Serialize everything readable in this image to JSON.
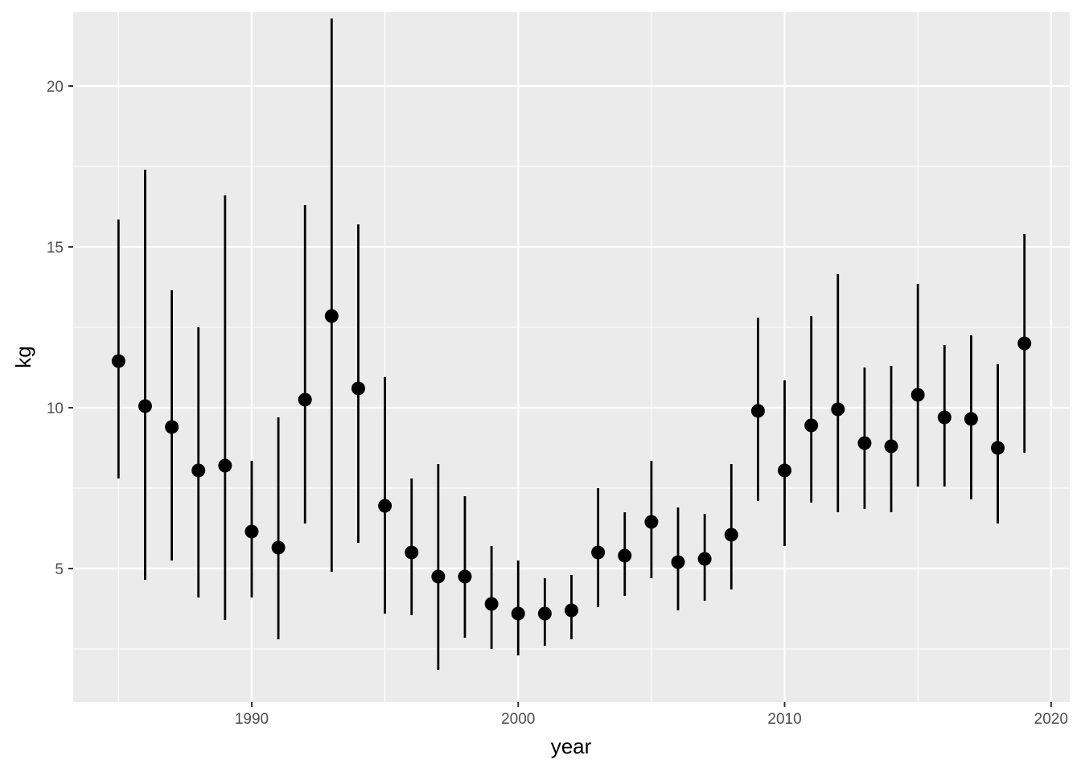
{
  "chart_data": {
    "type": "scatter",
    "title": "",
    "xlabel": "year",
    "ylabel": "kg",
    "xlim": [
      1983.3,
      2020.7
    ],
    "ylim": [
      0.85,
      22.3
    ],
    "x_ticks": [
      1990,
      2000,
      2010,
      2020
    ],
    "y_ticks": [
      5,
      10,
      15,
      20
    ],
    "x_tick_labels": [
      "1990",
      "2000",
      "2010",
      "2020"
    ],
    "y_tick_labels": [
      "5",
      "10",
      "15",
      "20"
    ],
    "grid": true,
    "legend": "none",
    "background": "#ebebeb",
    "gridline_color": "#ffffff",
    "mark_color": "#000000",
    "series": [
      {
        "points": [
          {
            "x": 1985,
            "y": 11.45,
            "lower": 7.8,
            "upper": 15.85
          },
          {
            "x": 1986,
            "y": 10.05,
            "lower": 4.65,
            "upper": 17.4
          },
          {
            "x": 1987,
            "y": 9.4,
            "lower": 5.25,
            "upper": 13.65
          },
          {
            "x": 1988,
            "y": 8.05,
            "lower": 4.1,
            "upper": 12.5
          },
          {
            "x": 1989,
            "y": 8.2,
            "lower": 3.4,
            "upper": 16.6
          },
          {
            "x": 1990,
            "y": 6.15,
            "lower": 4.1,
            "upper": 8.35
          },
          {
            "x": 1991,
            "y": 5.65,
            "lower": 2.8,
            "upper": 9.7
          },
          {
            "x": 1992,
            "y": 10.25,
            "lower": 6.4,
            "upper": 16.3
          },
          {
            "x": 1993,
            "y": 12.85,
            "lower": 4.9,
            "upper": 22.1
          },
          {
            "x": 1994,
            "y": 10.6,
            "lower": 5.8,
            "upper": 15.7
          },
          {
            "x": 1995,
            "y": 6.95,
            "lower": 3.6,
            "upper": 10.95
          },
          {
            "x": 1996,
            "y": 5.5,
            "lower": 3.55,
            "upper": 7.8
          },
          {
            "x": 1997,
            "y": 4.75,
            "lower": 1.85,
            "upper": 8.25
          },
          {
            "x": 1998,
            "y": 4.75,
            "lower": 2.85,
            "upper": 7.25
          },
          {
            "x": 1999,
            "y": 3.9,
            "lower": 2.5,
            "upper": 5.7
          },
          {
            "x": 2000,
            "y": 3.6,
            "lower": 2.3,
            "upper": 5.25
          },
          {
            "x": 2001,
            "y": 3.6,
            "lower": 2.6,
            "upper": 4.7
          },
          {
            "x": 2002,
            "y": 3.7,
            "lower": 2.8,
            "upper": 4.8
          },
          {
            "x": 2003,
            "y": 5.5,
            "lower": 3.8,
            "upper": 7.5
          },
          {
            "x": 2004,
            "y": 5.4,
            "lower": 4.15,
            "upper": 6.75
          },
          {
            "x": 2005,
            "y": 6.45,
            "lower": 4.7,
            "upper": 8.35
          },
          {
            "x": 2006,
            "y": 5.2,
            "lower": 3.7,
            "upper": 6.9
          },
          {
            "x": 2007,
            "y": 5.3,
            "lower": 4.0,
            "upper": 6.7
          },
          {
            "x": 2008,
            "y": 6.05,
            "lower": 4.35,
            "upper": 8.25
          },
          {
            "x": 2009,
            "y": 9.9,
            "lower": 7.1,
            "upper": 12.8
          },
          {
            "x": 2010,
            "y": 8.05,
            "lower": 5.7,
            "upper": 10.85
          },
          {
            "x": 2011,
            "y": 9.45,
            "lower": 7.05,
            "upper": 12.85
          },
          {
            "x": 2012,
            "y": 9.95,
            "lower": 6.75,
            "upper": 14.15
          },
          {
            "x": 2013,
            "y": 8.9,
            "lower": 6.85,
            "upper": 11.25
          },
          {
            "x": 2014,
            "y": 8.8,
            "lower": 6.75,
            "upper": 11.3
          },
          {
            "x": 2015,
            "y": 10.4,
            "lower": 7.55,
            "upper": 13.85
          },
          {
            "x": 2016,
            "y": 9.7,
            "lower": 7.55,
            "upper": 11.95
          },
          {
            "x": 2017,
            "y": 9.65,
            "lower": 7.15,
            "upper": 12.25
          },
          {
            "x": 2018,
            "y": 8.75,
            "lower": 6.4,
            "upper": 11.35
          },
          {
            "x": 2019,
            "y": 12.0,
            "lower": 8.6,
            "upper": 15.4
          }
        ]
      }
    ]
  }
}
